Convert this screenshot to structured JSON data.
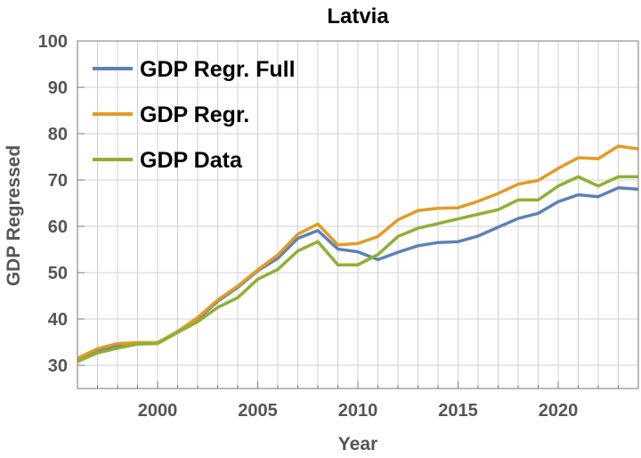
{
  "chart_data": {
    "type": "line",
    "title": "Latvia",
    "xlabel": "Year",
    "ylabel": "GDP Regressed",
    "xlim": [
      1996,
      2024
    ],
    "ylim": [
      25,
      100
    ],
    "x_ticks": [
      2000,
      2005,
      2010,
      2015,
      2020
    ],
    "x_tick_labels": [
      "2000",
      "2005",
      "2010",
      "2015",
      "2020"
    ],
    "y_ticks": [
      30,
      40,
      50,
      60,
      70,
      80,
      90,
      100
    ],
    "y_tick_labels": [
      "30",
      "40",
      "50",
      "60",
      "70",
      "80",
      "90",
      "100"
    ],
    "grid": true,
    "legend_position": "top-left",
    "x": [
      1996,
      1997,
      1998,
      1999,
      2000,
      2001,
      2002,
      2003,
      2004,
      2005,
      2006,
      2007,
      2008,
      2009,
      2010,
      2011,
      2012,
      2013,
      2014,
      2015,
      2016,
      2017,
      2018,
      2019,
      2020,
      2021,
      2022,
      2023,
      2024
    ],
    "series": [
      {
        "name": "GDP Regr. Full",
        "color": "#5e81b5",
        "values": [
          31.2,
          33.2,
          34.3,
          34.7,
          34.8,
          37.3,
          40.0,
          43.8,
          46.8,
          50.4,
          53.1,
          57.4,
          59.1,
          55.1,
          54.5,
          52.8,
          54.4,
          55.8,
          56.5,
          56.7,
          57.9,
          59.8,
          61.7,
          62.8,
          65.3,
          66.8,
          66.4,
          68.3,
          68.0
        ]
      },
      {
        "name": "GDP Regr.",
        "color": "#e19c24",
        "values": [
          31.5,
          33.6,
          34.7,
          34.9,
          34.9,
          37.3,
          40.3,
          44.1,
          47.1,
          50.6,
          53.8,
          58.3,
          60.5,
          56.0,
          56.3,
          57.8,
          61.4,
          63.4,
          63.9,
          64.0,
          65.4,
          67.1,
          69.1,
          69.9,
          72.5,
          74.8,
          74.6,
          77.3,
          76.7
        ]
      },
      {
        "name": "GDP Data",
        "color": "#8fb032",
        "values": [
          30.8,
          32.7,
          33.7,
          34.6,
          34.7,
          37.1,
          39.4,
          42.5,
          44.6,
          48.6,
          50.7,
          54.7,
          56.7,
          51.7,
          51.7,
          53.9,
          57.8,
          59.6,
          60.6,
          61.6,
          62.6,
          63.6,
          65.7,
          65.7,
          68.7,
          70.7,
          68.7,
          70.7,
          70.7
        ]
      }
    ]
  }
}
